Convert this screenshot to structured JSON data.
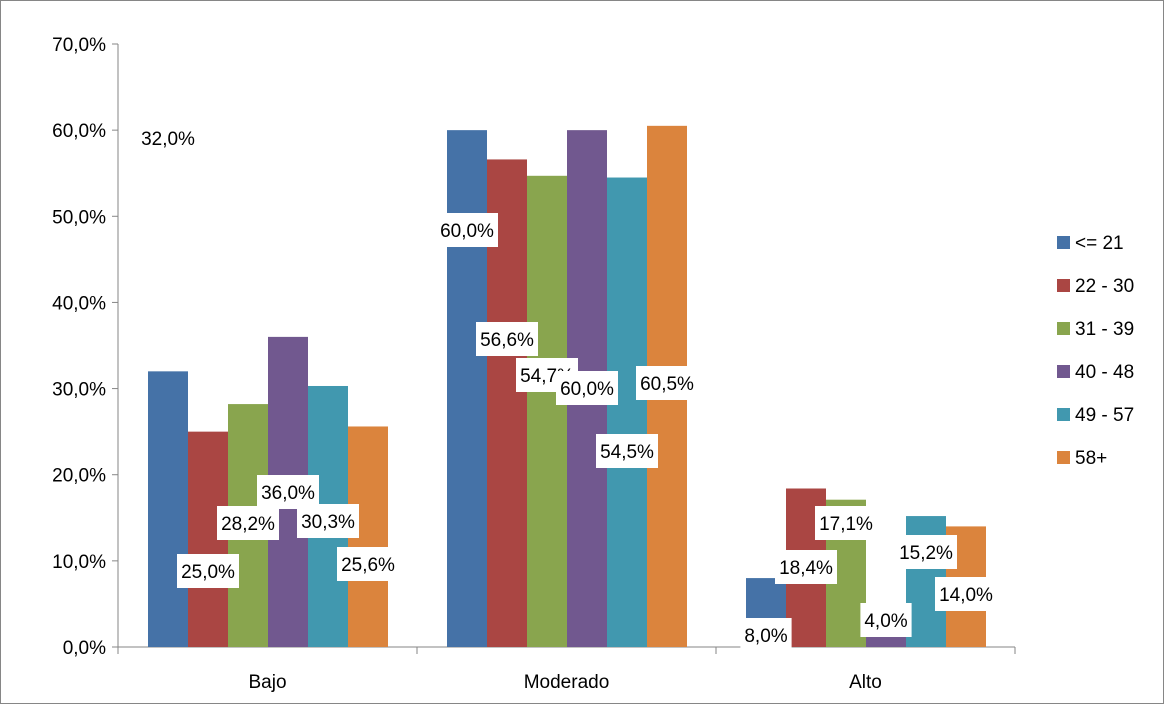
{
  "chart_data": {
    "type": "bar",
    "categories": [
      "Bajo",
      "Moderado",
      "Alto"
    ],
    "series": [
      {
        "name": "<= 21",
        "color": "#4572A7",
        "values": [
          32.0,
          60.0,
          8.0
        ],
        "labels": [
          "32,0%",
          "60,0%",
          "8,0%"
        ]
      },
      {
        "name": "22 - 30",
        "color": "#AA4643",
        "values": [
          25.0,
          56.6,
          18.4
        ],
        "labels": [
          "25,0%",
          "56,6%",
          "18,4%"
        ]
      },
      {
        "name": "31 - 39",
        "color": "#89A54E",
        "values": [
          28.2,
          54.7,
          17.1
        ],
        "labels": [
          "28,2%",
          "54,7%",
          "17,1%"
        ]
      },
      {
        "name": "40 - 48",
        "color": "#71588F",
        "values": [
          36.0,
          60.0,
          4.0
        ],
        "labels": [
          "36,0%",
          "60,0%",
          "4,0%"
        ]
      },
      {
        "name": "49 - 57",
        "color": "#4198AF",
        "values": [
          30.3,
          54.5,
          15.2
        ],
        "labels": [
          "30,3%",
          "54,5%",
          "15,2%"
        ]
      },
      {
        "name": "58+",
        "color": "#DB843D",
        "values": [
          25.6,
          60.5,
          14.0
        ],
        "labels": [
          "25,6%",
          "60,5%",
          "14,0%"
        ]
      }
    ],
    "ylim": [
      0,
      70
    ],
    "yticks": [
      0,
      10,
      20,
      30,
      40,
      50,
      60,
      70
    ],
    "ytick_labels": [
      "0,0%",
      "10,0%",
      "20,0%",
      "30,0%",
      "40,0%",
      "50,0%",
      "60,0%",
      "70,0%"
    ],
    "title": "",
    "xlabel": "",
    "ylabel": "",
    "legend_position": "right",
    "grid": false
  }
}
